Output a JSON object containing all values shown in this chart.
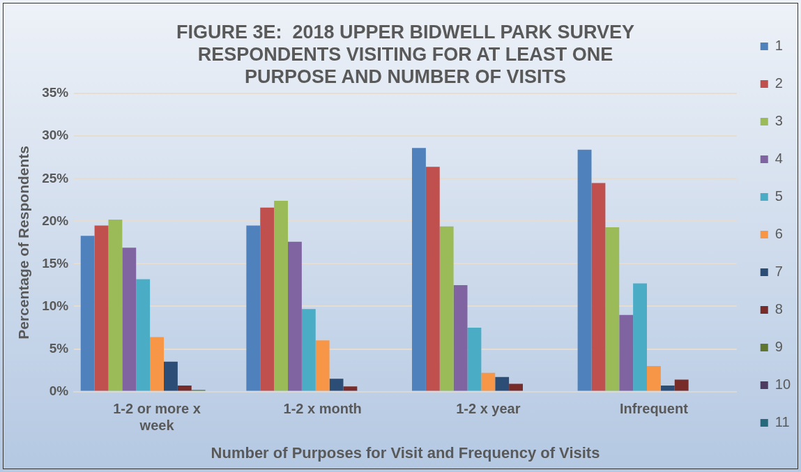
{
  "chart_data": {
    "type": "bar",
    "title": "FIGURE 3E:  2018 UPPER BIDWELL PARK SURVEY RESPONDENTS VISITING FOR AT LEAST ONE PURPOSE AND NUMBER OF VISITS",
    "xlabel": "Number of Purposes for Visit and Frequency of Visits",
    "ylabel": "Percentage of Respondents",
    "categories": [
      "1-2 or more x week",
      "1-2 x month",
      "1-2 x year",
      "Infrequent"
    ],
    "series": [
      {
        "name": "1",
        "color": "#4f81bd",
        "values": [
          18.3,
          19.5,
          28.6,
          28.4
        ]
      },
      {
        "name": "2",
        "color": "#c0504d",
        "values": [
          19.5,
          21.6,
          26.4,
          24.5
        ]
      },
      {
        "name": "3",
        "color": "#9bbb59",
        "values": [
          20.2,
          22.4,
          19.4,
          19.3
        ]
      },
      {
        "name": "4",
        "color": "#8064a2",
        "values": [
          16.9,
          17.6,
          12.5,
          9.0
        ]
      },
      {
        "name": "5",
        "color": "#4bacc6",
        "values": [
          13.2,
          9.7,
          7.5,
          12.7
        ]
      },
      {
        "name": "6",
        "color": "#f79646",
        "values": [
          6.4,
          6.0,
          2.2,
          3.0
        ]
      },
      {
        "name": "7",
        "color": "#2c4d75",
        "values": [
          3.5,
          1.5,
          1.7,
          0.7
        ]
      },
      {
        "name": "8",
        "color": "#772c2a",
        "values": [
          0.7,
          0.6,
          0.9,
          1.4
        ]
      },
      {
        "name": "9",
        "color": "#5f7530",
        "values": [
          0.2,
          0,
          0,
          0
        ]
      },
      {
        "name": "10",
        "color": "#4d3b62",
        "values": [
          0,
          0,
          0,
          0
        ]
      },
      {
        "name": "11",
        "color": "#276a7c",
        "values": [
          0,
          0,
          0,
          0
        ]
      }
    ],
    "ylim": [
      0,
      35
    ],
    "yticks": [
      {
        "value": 0,
        "label": "0%"
      },
      {
        "value": 5,
        "label": "5%"
      },
      {
        "value": 10,
        "label": "10%"
      },
      {
        "value": 15,
        "label": "15%"
      },
      {
        "value": 20,
        "label": "20%"
      },
      {
        "value": 25,
        "label": "25%"
      },
      {
        "value": 30,
        "label": "30%"
      },
      {
        "value": 35,
        "label": "35%"
      }
    ],
    "grid": "y",
    "legend": "right"
  }
}
